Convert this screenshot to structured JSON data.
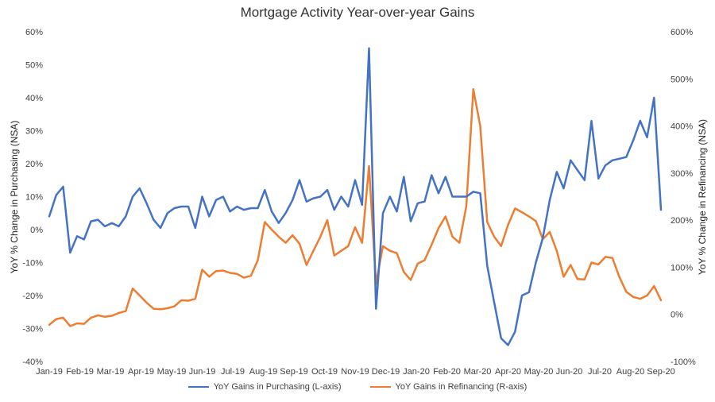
{
  "chart_data": {
    "type": "line",
    "title": "Mortgage Activity Year-over-year Gains",
    "ylabel_left": "YoY % Change in Purchasing (NSA)",
    "ylabel_right": "YoY % Change in Refinancing (NSA)",
    "ylim_left": [
      -40,
      60
    ],
    "ylim_right": [
      -100,
      600
    ],
    "yticks_left": [
      "-40%",
      "-30%",
      "-20%",
      "-10%",
      "0%",
      "10%",
      "20%",
      "30%",
      "40%",
      "50%",
      "60%"
    ],
    "yticks_right": [
      "-100%",
      "0%",
      "100%",
      "200%",
      "300%",
      "400%",
      "500%",
      "600%"
    ],
    "x_tick_labels": [
      "Jan-19",
      "Feb-19",
      "Mar-19",
      "Apr-19",
      "May-19",
      "Jun-19",
      "Jul-19",
      "Aug-19",
      "Sep-19",
      "Oct-19",
      "Nov-19",
      "Dec-19",
      "Jan-20",
      "Feb-20",
      "Mar-20",
      "Apr-20",
      "May-20",
      "Jun-20",
      "Jul-20",
      "Aug-20",
      "Sep-20"
    ],
    "grid": false,
    "legend_position": "bottom",
    "series": [
      {
        "name": "YoY Gains in Purchasing (L-axis)",
        "axis": "left",
        "color": "#4472C4",
        "values": [
          4,
          10.5,
          13,
          -7,
          -2,
          -3,
          2.5,
          3,
          1,
          2,
          1,
          4,
          10,
          12.5,
          8,
          3,
          0.5,
          5,
          6.5,
          7,
          7,
          0.5,
          10,
          4,
          9,
          10,
          5.5,
          7,
          6,
          6.5,
          6.5,
          12,
          5.5,
          2,
          5,
          9,
          15,
          8.5,
          9.5,
          10,
          12,
          6,
          10,
          7,
          15,
          7.5,
          55,
          -24,
          5,
          10,
          5.5,
          16,
          2.5,
          8,
          8.5,
          16.5,
          11,
          16,
          10,
          10,
          10,
          11.5,
          11,
          -11,
          -22,
          -33,
          -35,
          -31,
          -20,
          -19,
          -10,
          -2.5,
          9,
          17.5,
          12.5,
          21,
          18,
          15,
          33,
          15.5,
          19.5,
          21,
          21.5,
          22,
          27,
          33,
          28,
          40,
          6
        ]
      },
      {
        "name": "YoY Gains in Refinancing (R-axis)",
        "axis": "right",
        "color": "#ED7D31",
        "values": [
          -22,
          -10,
          -7,
          -25,
          -19,
          -20,
          -7,
          -2,
          -5,
          -3,
          3,
          7,
          55,
          40,
          25,
          12,
          11,
          13,
          17,
          30,
          29,
          33,
          95,
          80,
          92,
          93,
          88,
          86,
          78,
          82,
          115,
          196,
          180,
          165,
          152,
          168,
          150,
          105,
          135,
          165,
          200,
          125,
          135,
          145,
          185,
          152,
          315,
          65,
          145,
          135,
          130,
          90,
          73,
          108,
          115,
          148,
          183,
          208,
          165,
          152,
          230,
          478,
          400,
          196,
          165,
          145,
          190,
          225,
          217,
          208,
          198,
          160,
          175,
          135,
          80,
          105,
          75,
          74,
          110,
          106,
          122,
          120,
          80,
          48,
          37,
          33,
          40,
          60,
          30
        ]
      }
    ]
  }
}
